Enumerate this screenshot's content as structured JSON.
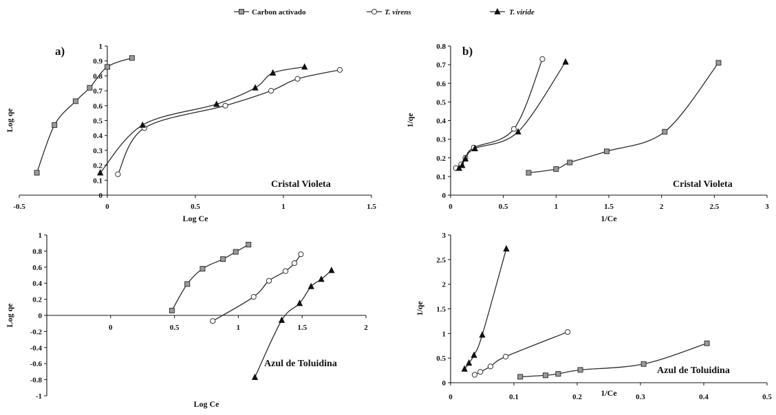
{
  "legend": [
    {
      "name": "Carbon activado",
      "marker": "square",
      "italic": false
    },
    {
      "name": "T. virens",
      "marker": "circle",
      "italic": true
    },
    {
      "name": "T. viride",
      "marker": "triangle",
      "italic": true
    }
  ],
  "colors": {
    "line": "#2a2a2a",
    "marker_stroke": "#333333",
    "square_fill": "#9a9a9a",
    "circle_fill": "#ffffff",
    "triangle_fill": "#111111"
  },
  "chart_data": [
    {
      "type": "line",
      "panel_label": "a)",
      "annotation": "Cristal Violeta",
      "xlabel": "Log Ce",
      "ylabel": "Log qe",
      "xlim": [
        -0.5,
        1.5
      ],
      "ylim": [
        0,
        1
      ],
      "xticks": [
        -0.5,
        0,
        0.5,
        1,
        1.5
      ],
      "xtick_labels": [
        "-0.5",
        "0",
        "0.5",
        "1",
        "1.5"
      ],
      "yticks": [
        0,
        0.1,
        0.2,
        0.3,
        0.4,
        0.5,
        0.6,
        0.7,
        0.8,
        0.9,
        1
      ],
      "ytick_labels": [
        "0",
        "0.1",
        "0.2",
        "0.3",
        "0.4",
        "0.5",
        "0.6",
        "0.7",
        "0.8",
        "0.9",
        "1"
      ],
      "yaxis_at_x": 0,
      "series": [
        {
          "name": "Carbon activado",
          "marker": "square",
          "points": [
            [
              -0.4,
              0.15
            ],
            [
              -0.3,
              0.47
            ],
            [
              -0.18,
              0.63
            ],
            [
              -0.1,
              0.72
            ],
            [
              0.0,
              0.86
            ],
            [
              0.14,
              0.92
            ]
          ]
        },
        {
          "name": "T. virens",
          "marker": "circle",
          "points": [
            [
              0.06,
              0.14
            ],
            [
              0.21,
              0.45
            ],
            [
              0.67,
              0.6
            ],
            [
              0.93,
              0.7
            ],
            [
              1.08,
              0.78
            ],
            [
              1.32,
              0.84
            ]
          ]
        },
        {
          "name": "T. viride",
          "marker": "triangle",
          "points": [
            [
              -0.04,
              0.15
            ],
            [
              0.2,
              0.47
            ],
            [
              0.62,
              0.61
            ],
            [
              0.84,
              0.72
            ],
            [
              0.94,
              0.82
            ],
            [
              1.12,
              0.86
            ]
          ]
        }
      ]
    },
    {
      "type": "line",
      "panel_label": "b)",
      "annotation": "Cristal Violeta",
      "xlabel": "1/Ce",
      "ylabel": "1/qe",
      "xlim": [
        0,
        3
      ],
      "ylim": [
        0,
        0.8
      ],
      "xticks": [
        0,
        0.5,
        1,
        1.5,
        2,
        2.5,
        3
      ],
      "xtick_labels": [
        "0",
        "0.5",
        "1",
        "1.5",
        "2",
        "2.5",
        "3"
      ],
      "yticks": [
        0,
        0.1,
        0.2,
        0.3,
        0.4,
        0.5,
        0.6,
        0.7,
        0.8
      ],
      "ytick_labels": [
        "0",
        "0.1",
        "0.2",
        "0.3",
        "0.4",
        "0.5",
        "0.6",
        "0.7",
        "0.8"
      ],
      "yaxis_at_x": 0,
      "series": [
        {
          "name": "Carbon activado",
          "marker": "square",
          "points": [
            [
              0.74,
              0.12
            ],
            [
              1.0,
              0.14
            ],
            [
              1.13,
              0.175
            ],
            [
              1.48,
              0.235
            ],
            [
              2.03,
              0.34
            ],
            [
              2.54,
              0.71
            ]
          ]
        },
        {
          "name": "T. virens",
          "marker": "circle",
          "points": [
            [
              0.05,
              0.145
            ],
            [
              0.1,
              0.165
            ],
            [
              0.14,
              0.2
            ],
            [
              0.22,
              0.255
            ],
            [
              0.6,
              0.355
            ],
            [
              0.87,
              0.73
            ]
          ]
        },
        {
          "name": "T. viride",
          "marker": "triangle",
          "points": [
            [
              0.08,
              0.145
            ],
            [
              0.11,
              0.16
            ],
            [
              0.14,
              0.195
            ],
            [
              0.23,
              0.25
            ],
            [
              0.64,
              0.34
            ],
            [
              1.09,
              0.715
            ]
          ]
        }
      ]
    },
    {
      "type": "line",
      "panel_label": "",
      "annotation": "Azul de Toluidina",
      "xlabel": "Log Ce",
      "ylabel": "Log qe",
      "xlim": [
        -0.5,
        2
      ],
      "ylim": [
        -1,
        1
      ],
      "xticks": [
        0,
        0.5,
        1,
        1.5,
        2
      ],
      "xtick_labels": [
        "0",
        "0.5",
        "1",
        "1.5",
        "2"
      ],
      "yticks": [
        -1,
        -0.8,
        -0.6,
        -0.4,
        -0.2,
        0,
        0.2,
        0.4,
        0.6,
        0.8,
        1
      ],
      "ytick_labels": [
        "-1",
        "-0.8",
        "-0.6",
        "-0.4",
        "-0.2",
        "0",
        "0.2",
        "0.4",
        "0.6",
        "0.8",
        "1"
      ],
      "yaxis_at_x": -0.5,
      "xaxis_at_y": 0,
      "series": [
        {
          "name": "Carbon activado",
          "marker": "square",
          "points": [
            [
              0.48,
              0.06
            ],
            [
              0.6,
              0.39
            ],
            [
              0.72,
              0.58
            ],
            [
              0.88,
              0.7
            ],
            [
              0.98,
              0.79
            ],
            [
              1.08,
              0.88
            ]
          ]
        },
        {
          "name": "T. virens",
          "marker": "circle",
          "points": [
            [
              0.8,
              -0.07
            ],
            [
              1.12,
              0.23
            ],
            [
              1.24,
              0.43
            ],
            [
              1.37,
              0.55
            ],
            [
              1.44,
              0.65
            ],
            [
              1.49,
              0.76
            ]
          ]
        },
        {
          "name": "T. viride",
          "marker": "triangle",
          "points": [
            [
              1.13,
              -0.77
            ],
            [
              1.34,
              -0.06
            ],
            [
              1.48,
              0.15
            ],
            [
              1.57,
              0.36
            ],
            [
              1.65,
              0.45
            ],
            [
              1.73,
              0.56
            ]
          ]
        }
      ]
    },
    {
      "type": "line",
      "panel_label": "",
      "annotation": "Azul de Toluidina",
      "xlabel": "1/Ce",
      "ylabel": "1/qe",
      "xlim": [
        0,
        0.5
      ],
      "ylim": [
        0,
        3
      ],
      "xticks": [
        0,
        0.1,
        0.2,
        0.3,
        0.4,
        0.5
      ],
      "xtick_labels": [
        "0",
        "0.1",
        "0.2",
        "0.3",
        "0.4",
        "0.5"
      ],
      "yticks": [
        0,
        0.5,
        1,
        1.5,
        2,
        2.5,
        3
      ],
      "ytick_labels": [
        "0",
        "0.5",
        "1",
        "1.5",
        "2",
        "2.5",
        "3"
      ],
      "yaxis_at_x": 0,
      "series": [
        {
          "name": "Carbon activado",
          "marker": "square",
          "points": [
            [
              0.11,
              0.12
            ],
            [
              0.15,
              0.15
            ],
            [
              0.17,
              0.18
            ],
            [
              0.205,
              0.26
            ],
            [
              0.305,
              0.38
            ],
            [
              0.405,
              0.8
            ]
          ]
        },
        {
          "name": "T. virens",
          "marker": "circle",
          "points": [
            [
              0.038,
              0.16
            ],
            [
              0.047,
              0.22
            ],
            [
              0.063,
              0.33
            ],
            [
              0.087,
              0.53
            ],
            [
              0.185,
              1.03
            ]
          ]
        },
        {
          "name": "T. viride",
          "marker": "triangle",
          "points": [
            [
              0.022,
              0.28
            ],
            [
              0.029,
              0.4
            ],
            [
              0.037,
              0.56
            ],
            [
              0.05,
              0.97
            ],
            [
              0.088,
              2.72
            ]
          ]
        }
      ]
    }
  ]
}
